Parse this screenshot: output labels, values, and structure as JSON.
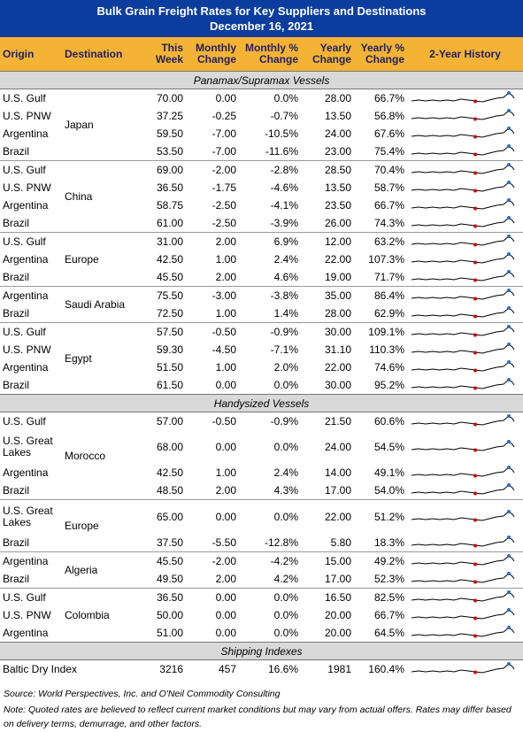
{
  "header": {
    "title": [
      "Bulk Grain Freight Rates for Key Suppliers and Destinations",
      "December 16, 2021"
    ]
  },
  "columns": [
    [
      "Origin"
    ],
    [
      "Destination"
    ],
    [
      "This",
      "Week"
    ],
    [
      "Monthly",
      "Change"
    ],
    [
      "Monthly %",
      "Change"
    ],
    [
      "Yearly",
      "Change"
    ],
    [
      "Yearly %",
      "Change"
    ],
    [
      "2-Year History"
    ]
  ],
  "sections": [
    {
      "title": "Panamax/Supramax Vessels",
      "groups": [
        {
          "destination": "Japan",
          "rows": [
            [
              "U.S. Gulf",
              "70.00",
              "0.00",
              "0.0%",
              "28.00",
              "66.7%"
            ],
            [
              "U.S. PNW",
              "37.25",
              "-0.25",
              "-0.7%",
              "13.50",
              "56.8%"
            ],
            [
              "Argentina",
              "59.50",
              "-7.00",
              "-10.5%",
              "24.00",
              "67.6%"
            ],
            [
              "Brazil",
              "53.50",
              "-7.00",
              "-11.6%",
              "23.00",
              "75.4%"
            ]
          ]
        },
        {
          "destination": "China",
          "rows": [
            [
              "U.S. Gulf",
              "69.00",
              "-2.00",
              "-2.8%",
              "28.50",
              "70.4%"
            ],
            [
              "U.S. PNW",
              "36.50",
              "-1.75",
              "-4.6%",
              "13.50",
              "58.7%"
            ],
            [
              "Argentina",
              "58.75",
              "-2.50",
              "-4.1%",
              "23.50",
              "66.7%"
            ],
            [
              "Brazil",
              "61.00",
              "-2.50",
              "-3.9%",
              "26.00",
              "74.3%"
            ]
          ]
        },
        {
          "destination": "Europe",
          "rows": [
            [
              "U.S. Gulf",
              "31.00",
              "2.00",
              "6.9%",
              "12.00",
              "63.2%"
            ],
            [
              "Argentina",
              "42.50",
              "1.00",
              "2.4%",
              "22.00",
              "107.3%"
            ],
            [
              "Brazil",
              "45.50",
              "2.00",
              "4.6%",
              "19.00",
              "71.7%"
            ]
          ]
        },
        {
          "destination": "Saudi Arabia",
          "rows": [
            [
              "Argentina",
              "75.50",
              "-3.00",
              "-3.8%",
              "35.00",
              "86.4%"
            ],
            [
              "Brazil",
              "72.50",
              "1.00",
              "1.4%",
              "28.00",
              "62.9%"
            ]
          ]
        },
        {
          "destination": "Egypt",
          "rows": [
            [
              "U.S. Gulf",
              "57.50",
              "-0.50",
              "-0.9%",
              "30.00",
              "109.1%"
            ],
            [
              "U.S. PNW",
              "59.30",
              "-4.50",
              "-7.1%",
              "31.10",
              "110.3%"
            ],
            [
              "Argentina",
              "51.50",
              "1.00",
              "2.0%",
              "22.00",
              "74.6%"
            ],
            [
              "Brazil",
              "61.50",
              "0.00",
              "0.0%",
              "30.00",
              "95.2%"
            ]
          ]
        }
      ]
    },
    {
      "title": "Handysized Vessels",
      "groups": [
        {
          "destination": "Morocco",
          "rows": [
            [
              "U.S. Gulf",
              "57.00",
              "-0.50",
              "-0.9%",
              "21.50",
              "60.6%"
            ],
            [
              "U.S. Great Lakes",
              "68.00",
              "0.00",
              "0.0%",
              "24.00",
              "54.5%"
            ],
            [
              "Argentina",
              "42.50",
              "1.00",
              "2.4%",
              "14.00",
              "49.1%"
            ],
            [
              "Brazil",
              "48.50",
              "2.00",
              "4.3%",
              "17.00",
              "54.0%"
            ]
          ]
        },
        {
          "destination": "Europe",
          "rows": [
            [
              "U.S. Great Lakes",
              "65.00",
              "0.00",
              "0.0%",
              "22.00",
              "51.2%"
            ],
            [
              "Brazil",
              "37.50",
              "-5.50",
              "-12.8%",
              "5.80",
              "18.3%"
            ]
          ]
        },
        {
          "destination": "Algeria",
          "rows": [
            [
              "Argentina",
              "45.50",
              "-2.00",
              "-4.2%",
              "15.00",
              "49.2%"
            ],
            [
              "Brazil",
              "49.50",
              "2.00",
              "4.2%",
              "17.00",
              "52.3%"
            ]
          ]
        },
        {
          "destination": "Colombia",
          "rows": [
            [
              "U.S. Gulf",
              "36.50",
              "0.00",
              "0.0%",
              "16.50",
              "82.5%"
            ],
            [
              "U.S. PNW",
              "50.00",
              "0.00",
              "0.0%",
              "20.00",
              "66.7%"
            ],
            [
              "Argentina",
              "51.00",
              "0.00",
              "0.0%",
              "20.00",
              "64.5%"
            ]
          ]
        }
      ]
    },
    {
      "title": "Shipping Indexes",
      "groups": [
        {
          "destination": null,
          "rows": [
            [
              "Baltic Dry Index",
              "3216",
              "457",
              "16.6%",
              "1981",
              "160.4%"
            ]
          ]
        }
      ]
    }
  ],
  "source": "Source: World Perspectives, Inc. and O'Neil Commodity Consulting",
  "note": "Note: Quoted rates are believed to reflect current market conditions but may vary from actual offers. Rates may differ based on delivery terms, demurrage, and other factors."
}
